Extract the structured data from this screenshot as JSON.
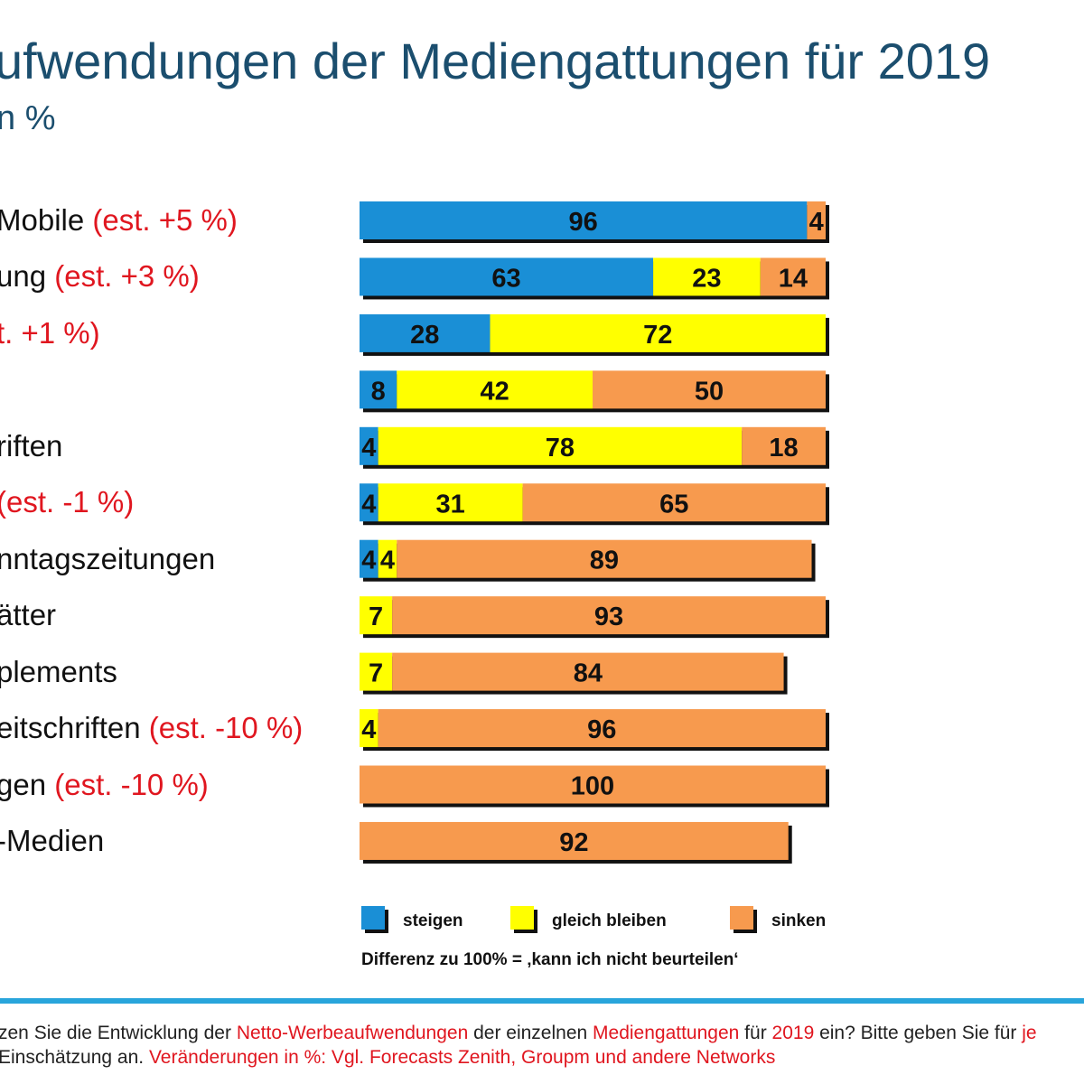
{
  "title": "ufwendungen der Mediengattungen für 2019",
  "subtitle": "n %",
  "colors": {
    "steigen": "#1a8fd6",
    "gleich_bleiben": "#ffff00",
    "sinken": "#f79a4e",
    "title": "#1b4e6e",
    "estimate": "#e0161f",
    "rule": "#29a5db"
  },
  "chart_data": {
    "type": "bar",
    "orientation": "horizontal",
    "stacked": true,
    "categories": [
      "Mobile",
      "ung",
      "",
      "",
      "riften",
      "",
      "nntagszeitungen",
      "ätter",
      "plements",
      "eitschriften",
      "gen",
      "-Medien"
    ],
    "estimates": [
      "(est. +5  %)",
      "(est. +3 %)",
      "t. +1 %)",
      "",
      "",
      "(est. -1 %)",
      "",
      "",
      "",
      "(est. -10 %)",
      "(est. -10 %)",
      ""
    ],
    "series": [
      {
        "name": "steigen",
        "values": [
          96,
          63,
          28,
          8,
          4,
          4,
          4,
          0,
          0,
          0,
          0,
          0
        ]
      },
      {
        "name": "gleich bleiben",
        "values": [
          0,
          23,
          72,
          42,
          78,
          31,
          4,
          7,
          7,
          4,
          0,
          0
        ]
      },
      {
        "name": "sinken",
        "values": [
          4,
          14,
          0,
          50,
          18,
          65,
          89,
          93,
          84,
          96,
          100,
          92
        ]
      }
    ],
    "xlim": [
      0,
      100
    ],
    "legend": "bottom"
  },
  "legend": {
    "steigen": "steigen",
    "gleich_bleiben": "gleich bleiben",
    "sinken": "sinken"
  },
  "footnote": "Differenz zu 100% = ‚kann ich nicht beurteilen‘",
  "question": {
    "line1_a": "zen Sie die Entwicklung der ",
    "line1_b": "Netto-Werbeaufwendungen",
    "line1_c": " der einzelnen ",
    "line1_d": "Mediengattungen",
    "line1_e": " für ",
    "line1_f": "2019",
    "line1_g": " ein? Bitte geben Sie für ",
    "line1_h": "je",
    "line2_a": "Einschätzung an. ",
    "line2_b": "Veränderungen in %: Vgl. Forecasts Zenith, Groupm und andere Networks"
  }
}
